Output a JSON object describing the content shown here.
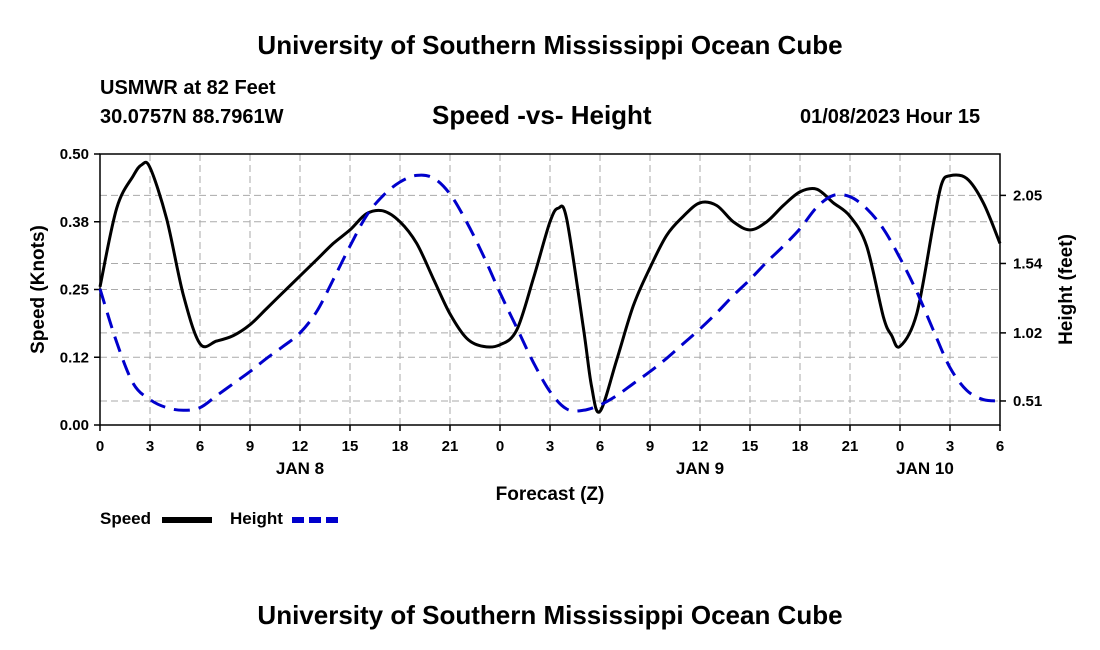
{
  "header": {
    "title": "University of Southern Mississippi Ocean Cube",
    "station": "USMWR at 82 Feet",
    "coords": "30.0757N  88.7961W",
    "subtitle": "Speed -vs- Height",
    "timestamp": "01/08/2023 Hour 15"
  },
  "footer": {
    "title": "University of Southern Mississippi Ocean Cube"
  },
  "legend": {
    "speed_label": "Speed",
    "height_label": "Height"
  },
  "colors": {
    "speed": "#000000",
    "height": "#0000cc",
    "grid": "#aaaaaa"
  },
  "chart_data": {
    "type": "line",
    "title": "Speed -vs- Height",
    "xlabel": "Forecast (Z)",
    "ylabel": "Speed (Knots)",
    "y2label": "Height (feet)",
    "x_range_hours": [
      0,
      54
    ],
    "x_ticks": [
      {
        "hour": 0,
        "label": "0"
      },
      {
        "hour": 3,
        "label": "3"
      },
      {
        "hour": 6,
        "label": "6"
      },
      {
        "hour": 9,
        "label": "9"
      },
      {
        "hour": 12,
        "label": "12"
      },
      {
        "hour": 15,
        "label": "15"
      },
      {
        "hour": 18,
        "label": "18"
      },
      {
        "hour": 21,
        "label": "21"
      },
      {
        "hour": 24,
        "label": "0"
      },
      {
        "hour": 27,
        "label": "3"
      },
      {
        "hour": 30,
        "label": "6"
      },
      {
        "hour": 33,
        "label": "9"
      },
      {
        "hour": 36,
        "label": "12"
      },
      {
        "hour": 39,
        "label": "15"
      },
      {
        "hour": 42,
        "label": "18"
      },
      {
        "hour": 45,
        "label": "21"
      },
      {
        "hour": 48,
        "label": "0"
      },
      {
        "hour": 51,
        "label": "3"
      },
      {
        "hour": 54,
        "label": "6"
      }
    ],
    "day_labels": [
      {
        "hour": 12,
        "label": "JAN 8"
      },
      {
        "hour": 36,
        "label": "JAN 9"
      },
      {
        "hour": 49.5,
        "label": "JAN 10"
      }
    ],
    "ylim": [
      0,
      0.5
    ],
    "y_ticks": [
      {
        "value": 0.0,
        "label": "0.00"
      },
      {
        "value": 0.125,
        "label": "0.12"
      },
      {
        "value": 0.25,
        "label": "0.25"
      },
      {
        "value": 0.375,
        "label": "0.38"
      },
      {
        "value": 0.5,
        "label": "0.50"
      }
    ],
    "y2lim": [
      0.33,
      2.36
    ],
    "y2_ticks": [
      {
        "value": 0.51,
        "label": "0.51"
      },
      {
        "value": 1.02,
        "label": "1.02"
      },
      {
        "value": 1.54,
        "label": "1.54"
      },
      {
        "value": 2.05,
        "label": "2.05"
      }
    ],
    "series": [
      {
        "name": "Speed",
        "axis": "left",
        "style": "solid",
        "x": [
          0,
          1,
          2,
          2.5,
          3,
          4,
          5,
          6,
          7,
          8,
          9,
          10,
          11,
          12,
          13,
          14,
          15,
          16,
          17,
          18,
          19,
          20,
          21,
          22,
          23,
          24,
          25,
          26,
          27,
          27.5,
          28,
          29,
          29.5,
          30,
          31,
          32,
          33,
          34,
          35,
          36,
          37,
          38,
          39,
          40,
          41,
          42,
          43,
          44,
          45,
          46,
          47,
          47.5,
          48,
          49,
          50,
          50.5,
          51,
          52,
          53,
          54
        ],
        "y": [
          0.255,
          0.4,
          0.46,
          0.48,
          0.475,
          0.38,
          0.24,
          0.15,
          0.155,
          0.165,
          0.185,
          0.215,
          0.245,
          0.275,
          0.305,
          0.335,
          0.36,
          0.39,
          0.395,
          0.375,
          0.335,
          0.27,
          0.205,
          0.16,
          0.145,
          0.148,
          0.175,
          0.27,
          0.375,
          0.4,
          0.38,
          0.18,
          0.07,
          0.025,
          0.12,
          0.22,
          0.29,
          0.35,
          0.385,
          0.41,
          0.405,
          0.375,
          0.36,
          0.375,
          0.405,
          0.43,
          0.435,
          0.41,
          0.385,
          0.33,
          0.2,
          0.165,
          0.145,
          0.205,
          0.37,
          0.445,
          0.46,
          0.455,
          0.41,
          0.335
        ]
      },
      {
        "name": "Height",
        "axis": "right",
        "style": "dashed",
        "x": [
          0,
          1,
          2,
          3,
          4,
          5,
          6,
          7,
          8,
          9,
          10,
          11,
          12,
          13,
          14,
          15,
          16,
          17,
          18,
          19,
          20,
          21,
          22,
          23,
          24,
          25,
          26,
          27,
          28,
          29,
          30,
          31,
          32,
          33,
          34,
          35,
          36,
          37,
          38,
          39,
          40,
          41,
          42,
          43,
          44,
          45,
          46,
          47,
          48,
          49,
          50,
          51,
          52,
          53,
          54
        ],
        "y": [
          1.35,
          0.95,
          0.64,
          0.52,
          0.46,
          0.44,
          0.46,
          0.55,
          0.64,
          0.73,
          0.83,
          0.92,
          1.02,
          1.18,
          1.42,
          1.67,
          1.9,
          2.05,
          2.15,
          2.2,
          2.18,
          2.06,
          1.85,
          1.6,
          1.32,
          1.06,
          0.8,
          0.58,
          0.45,
          0.44,
          0.48,
          0.55,
          0.64,
          0.73,
          0.83,
          0.94,
          1.05,
          1.17,
          1.3,
          1.42,
          1.55,
          1.67,
          1.8,
          1.96,
          2.05,
          2.04,
          1.95,
          1.8,
          1.58,
          1.33,
          1.04,
          0.76,
          0.59,
          0.52,
          0.51
        ]
      }
    ]
  }
}
